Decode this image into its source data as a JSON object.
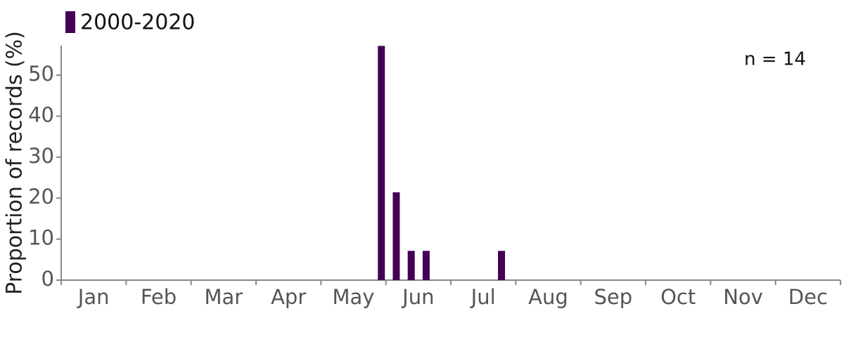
{
  "chart_data": {
    "type": "bar",
    "y_label": "Proportion of records (%)",
    "annotation": "n = 14",
    "categories": [
      "Jan",
      "Feb",
      "Mar",
      "Apr",
      "May",
      "Jun",
      "Jul",
      "Aug",
      "Sep",
      "Oct",
      "Nov",
      "Dec"
    ],
    "x": [
      4.93,
      5.16,
      5.39,
      5.62,
      6.78
    ],
    "xlim": [
      0,
      12
    ],
    "series": [
      {
        "name": "2000-2020",
        "color": "#440154",
        "values": [
          57.14,
          21.43,
          7.14,
          7.14,
          7.14
        ]
      }
    ],
    "ylim": [
      0,
      57.2
    ],
    "yticks": [
      0,
      10,
      20,
      30,
      40,
      50
    ]
  }
}
